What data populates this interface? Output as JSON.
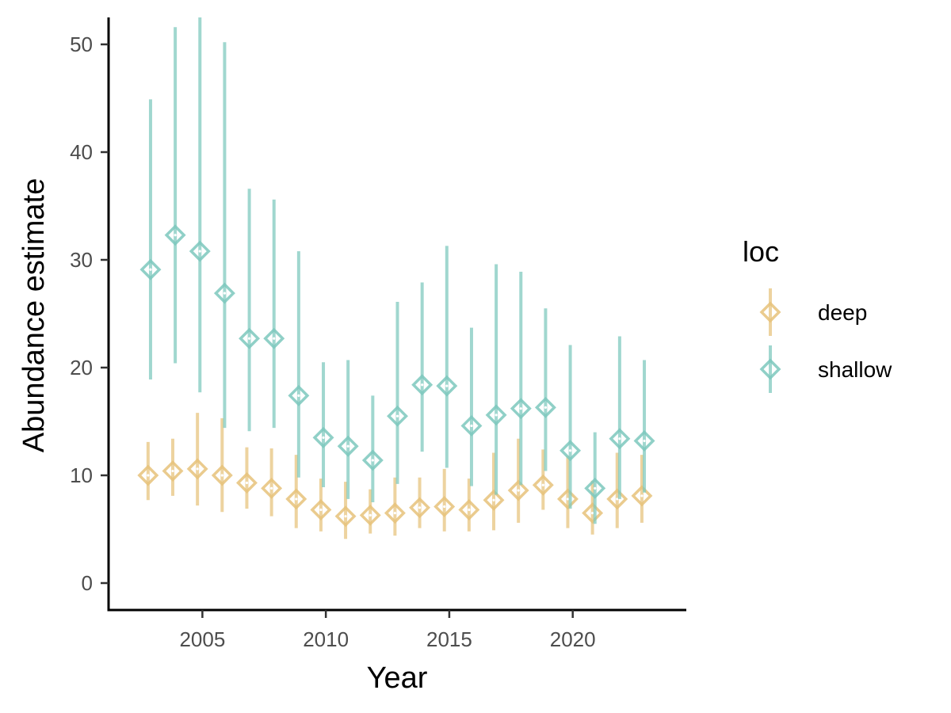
{
  "chart_data": {
    "type": "scatter",
    "title": "",
    "xlabel": "Year",
    "ylabel": "Abundance estimate",
    "xlim": [
      2001.2,
      2024.6
    ],
    "ylim": [
      -2.5,
      52.5
    ],
    "xticks": [
      2005,
      2010,
      2015,
      2020
    ],
    "yticks": [
      0,
      10,
      20,
      30,
      40,
      50
    ],
    "grid": false,
    "legend": {
      "title": "loc",
      "position": "right"
    },
    "marker": "diamond-with-errorbars",
    "series": [
      {
        "name": "deep",
        "color": "#E6C27A",
        "points": [
          {
            "x": 2002.8,
            "y": 10.0,
            "lo": 7.7,
            "hi": 13.1
          },
          {
            "x": 2003.8,
            "y": 10.4,
            "lo": 8.1,
            "hi": 13.4
          },
          {
            "x": 2004.8,
            "y": 10.6,
            "lo": 7.2,
            "hi": 15.8
          },
          {
            "x": 2005.8,
            "y": 10.0,
            "lo": 6.6,
            "hi": 15.3
          },
          {
            "x": 2006.8,
            "y": 9.3,
            "lo": 6.9,
            "hi": 12.6
          },
          {
            "x": 2007.8,
            "y": 8.8,
            "lo": 6.2,
            "hi": 12.5
          },
          {
            "x": 2008.8,
            "y": 7.8,
            "lo": 5.1,
            "hi": 11.9
          },
          {
            "x": 2009.8,
            "y": 6.8,
            "lo": 4.8,
            "hi": 9.7
          },
          {
            "x": 2010.8,
            "y": 6.2,
            "lo": 4.1,
            "hi": 9.4
          },
          {
            "x": 2011.8,
            "y": 6.3,
            "lo": 4.6,
            "hi": 8.7
          },
          {
            "x": 2012.8,
            "y": 6.5,
            "lo": 4.4,
            "hi": 9.8
          },
          {
            "x": 2013.8,
            "y": 7.0,
            "lo": 5.1,
            "hi": 9.8
          },
          {
            "x": 2014.8,
            "y": 7.1,
            "lo": 4.8,
            "hi": 10.6
          },
          {
            "x": 2015.8,
            "y": 6.8,
            "lo": 4.8,
            "hi": 9.7
          },
          {
            "x": 2016.8,
            "y": 7.7,
            "lo": 4.9,
            "hi": 12.1
          },
          {
            "x": 2017.8,
            "y": 8.6,
            "lo": 5.6,
            "hi": 13.4
          },
          {
            "x": 2018.8,
            "y": 9.1,
            "lo": 6.8,
            "hi": 12.4
          },
          {
            "x": 2019.8,
            "y": 7.8,
            "lo": 5.1,
            "hi": 11.8
          },
          {
            "x": 2020.8,
            "y": 6.5,
            "lo": 4.5,
            "hi": 9.5
          },
          {
            "x": 2021.8,
            "y": 7.8,
            "lo": 5.1,
            "hi": 12.1
          },
          {
            "x": 2022.8,
            "y": 8.1,
            "lo": 5.6,
            "hi": 11.9
          }
        ]
      },
      {
        "name": "shallow",
        "color": "#7CC8BD",
        "points": [
          {
            "x": 2002.9,
            "y": 29.1,
            "lo": 18.9,
            "hi": 44.9
          },
          {
            "x": 2003.9,
            "y": 32.3,
            "lo": 20.4,
            "hi": 51.6
          },
          {
            "x": 2004.9,
            "y": 30.8,
            "lo": 17.7,
            "hi": 52.5
          },
          {
            "x": 2005.9,
            "y": 26.9,
            "lo": 14.4,
            "hi": 50.2
          },
          {
            "x": 2006.9,
            "y": 22.7,
            "lo": 14.1,
            "hi": 36.6
          },
          {
            "x": 2007.9,
            "y": 22.7,
            "lo": 14.4,
            "hi": 35.6
          },
          {
            "x": 2008.9,
            "y": 17.4,
            "lo": 9.8,
            "hi": 30.8
          },
          {
            "x": 2009.9,
            "y": 13.5,
            "lo": 8.9,
            "hi": 20.5
          },
          {
            "x": 2010.9,
            "y": 12.7,
            "lo": 7.8,
            "hi": 20.7
          },
          {
            "x": 2011.9,
            "y": 11.4,
            "lo": 7.5,
            "hi": 17.4
          },
          {
            "x": 2012.9,
            "y": 15.5,
            "lo": 9.2,
            "hi": 26.1
          },
          {
            "x": 2013.9,
            "y": 18.4,
            "lo": 12.2,
            "hi": 27.9
          },
          {
            "x": 2014.9,
            "y": 18.3,
            "lo": 10.7,
            "hi": 31.3
          },
          {
            "x": 2015.9,
            "y": 14.6,
            "lo": 9.0,
            "hi": 23.7
          },
          {
            "x": 2016.9,
            "y": 15.6,
            "lo": 8.2,
            "hi": 29.6
          },
          {
            "x": 2017.9,
            "y": 16.2,
            "lo": 9.1,
            "hi": 28.9
          },
          {
            "x": 2018.9,
            "y": 16.3,
            "lo": 10.4,
            "hi": 25.5
          },
          {
            "x": 2019.9,
            "y": 12.3,
            "lo": 6.9,
            "hi": 22.1
          },
          {
            "x": 2020.9,
            "y": 8.8,
            "lo": 5.5,
            "hi": 14.0
          },
          {
            "x": 2021.9,
            "y": 13.4,
            "lo": 7.8,
            "hi": 22.9
          },
          {
            "x": 2022.9,
            "y": 13.2,
            "lo": 8.4,
            "hi": 20.7
          }
        ]
      }
    ]
  }
}
